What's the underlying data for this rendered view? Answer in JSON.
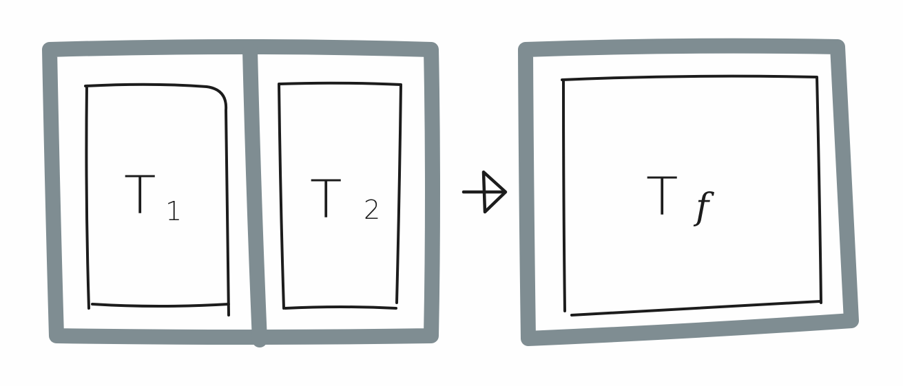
{
  "colors": {
    "frame": "#7f8d92",
    "panel": "#1c1c1c",
    "text": "#1c1c1c"
  },
  "diagram": {
    "input_group": {
      "panel_1": {
        "main": "T",
        "sub": "1"
      },
      "panel_2": {
        "main": "T",
        "sub": "2"
      }
    },
    "arrow_icon": "right-arrow-icon",
    "output_group": {
      "panel_f": {
        "main": "T",
        "sub": "f"
      }
    }
  }
}
